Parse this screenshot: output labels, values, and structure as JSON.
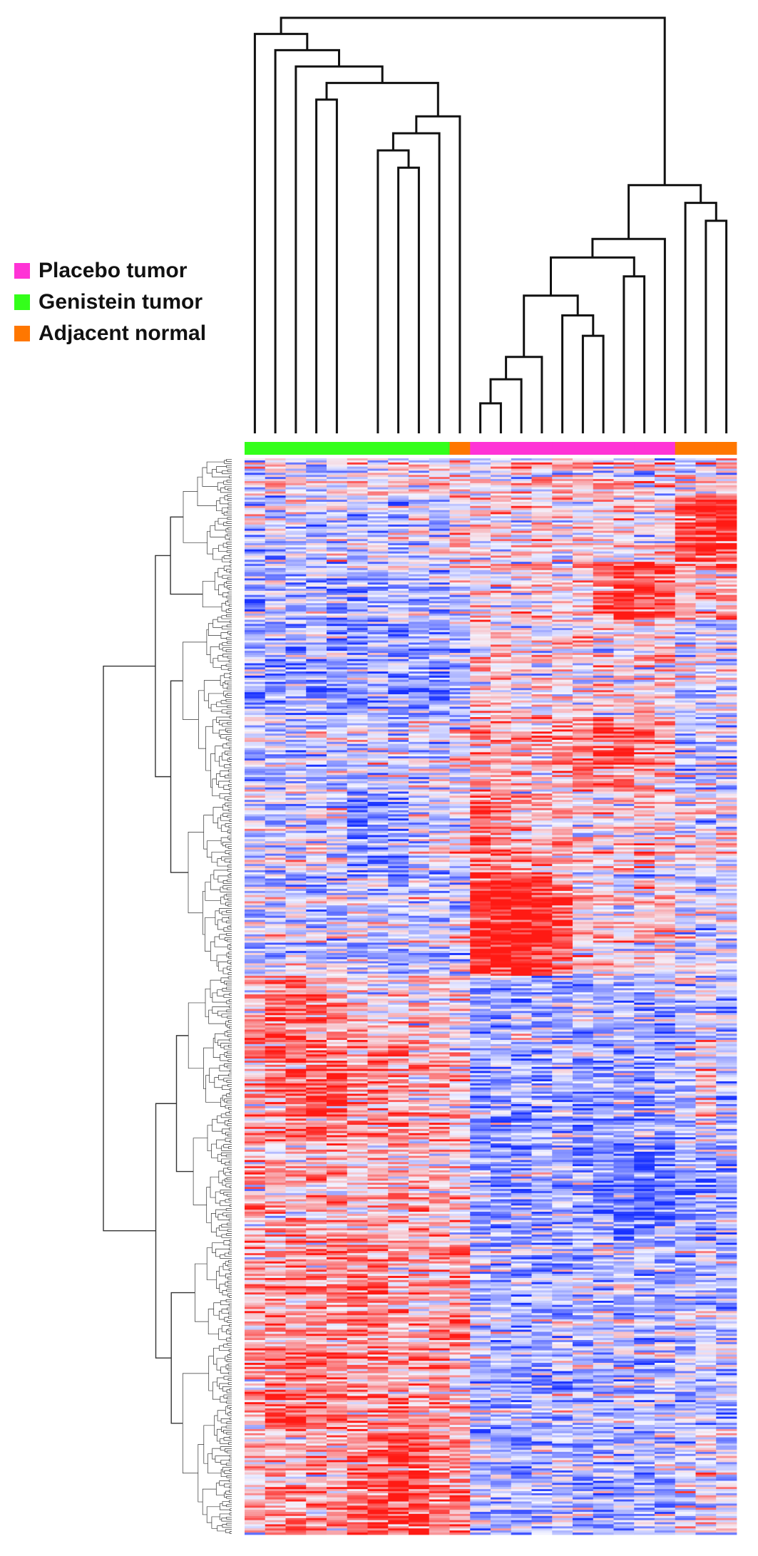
{
  "chart_data": {
    "type": "heatmap",
    "title": "",
    "legend_placement": "left",
    "legend": [
      {
        "label": "Placebo tumor",
        "color": "#ff33d6"
      },
      {
        "label": "Genistein tumor",
        "color": "#33ff1a"
      },
      {
        "label": "Adjacent normal",
        "color": "#ff7700"
      }
    ],
    "colors": {
      "low": "#1a33ff",
      "mid": "#f4f4ff",
      "high": "#ff1a14",
      "dendrogram": "#111111",
      "row_dendrogram": "#333333"
    },
    "n_rows": 520,
    "columns": [
      {
        "id": 1,
        "group": "Genistein tumor"
      },
      {
        "id": 2,
        "group": "Genistein tumor"
      },
      {
        "id": 3,
        "group": "Genistein tumor"
      },
      {
        "id": 4,
        "group": "Genistein tumor"
      },
      {
        "id": 5,
        "group": "Genistein tumor"
      },
      {
        "id": 6,
        "group": "Genistein tumor"
      },
      {
        "id": 7,
        "group": "Genistein tumor"
      },
      {
        "id": 8,
        "group": "Genistein tumor"
      },
      {
        "id": 9,
        "group": "Genistein tumor"
      },
      {
        "id": 10,
        "group": "Genistein tumor"
      },
      {
        "id": 11,
        "group": "Adjacent normal"
      },
      {
        "id": 12,
        "group": "Placebo tumor"
      },
      {
        "id": 13,
        "group": "Placebo tumor"
      },
      {
        "id": 14,
        "group": "Placebo tumor"
      },
      {
        "id": 15,
        "group": "Placebo tumor"
      },
      {
        "id": 16,
        "group": "Placebo tumor"
      },
      {
        "id": 17,
        "group": "Placebo tumor"
      },
      {
        "id": 18,
        "group": "Placebo tumor"
      },
      {
        "id": 19,
        "group": "Placebo tumor"
      },
      {
        "id": 20,
        "group": "Placebo tumor"
      },
      {
        "id": 21,
        "group": "Placebo tumor"
      },
      {
        "id": 22,
        "group": "Adjacent normal"
      },
      {
        "id": 23,
        "group": "Adjacent normal"
      },
      {
        "id": 24,
        "group": "Adjacent normal"
      }
    ],
    "column_dendrogram_merges": [
      [
        12,
        13
      ],
      [
        14,
        101
      ],
      [
        15,
        102
      ],
      [
        17,
        18
      ],
      [
        16,
        104
      ],
      [
        103,
        105
      ],
      [
        19,
        20
      ],
      [
        106,
        107
      ],
      [
        108,
        21
      ],
      [
        23,
        24
      ],
      [
        22,
        110
      ],
      [
        109,
        111
      ],
      [
        8,
        9
      ],
      [
        7,
        113
      ],
      [
        114,
        10
      ],
      [
        115,
        11
      ],
      [
        4,
        5
      ],
      [
        117,
        116
      ],
      [
        3,
        118
      ],
      [
        2,
        119
      ],
      [
        1,
        120
      ],
      [
        121,
        112
      ]
    ],
    "row_blocks": [
      {
        "rows": [
          0,
          18
        ],
        "bias": [
          0,
          0,
          0,
          0,
          0,
          0,
          0,
          0,
          0,
          0,
          0,
          0,
          0,
          0,
          0,
          0,
          0,
          0,
          0,
          0,
          0,
          0,
          0,
          0
        ]
      },
      {
        "rows": [
          18,
          50
        ],
        "bias": [
          -0.25,
          -0.25,
          -0.25,
          -0.25,
          -0.25,
          -0.25,
          -0.25,
          -0.25,
          -0.25,
          -0.25,
          0.3,
          0.2,
          0.2,
          0.2,
          0.2,
          0.2,
          0.2,
          0.2,
          0.2,
          0.2,
          0.2,
          1.3,
          1.5,
          1.4
        ]
      },
      {
        "rows": [
          50,
          78
        ],
        "bias": [
          -0.5,
          -0.5,
          -0.5,
          -0.5,
          -0.5,
          -0.5,
          -0.5,
          -0.5,
          -0.5,
          -0.5,
          -0.2,
          0.2,
          0.2,
          0.2,
          0.2,
          0.2,
          0.2,
          1.2,
          1.3,
          1.3,
          1.0,
          0.5,
          0.6,
          0.6
        ]
      },
      {
        "rows": [
          78,
          125
        ],
        "bias": [
          -0.6,
          -0.6,
          -0.6,
          -0.6,
          -0.6,
          -0.6,
          -0.6,
          -0.6,
          -0.6,
          -0.6,
          -0.3,
          0.3,
          0.3,
          0.3,
          0.3,
          0.3,
          0.3,
          0.3,
          0.3,
          0.3,
          0.3,
          -0.1,
          -0.1,
          -0.1
        ]
      },
      {
        "rows": [
          125,
          160
        ],
        "bias": [
          -0.3,
          -0.3,
          -0.3,
          -0.3,
          -0.3,
          -0.3,
          -0.3,
          -0.3,
          -0.3,
          -0.3,
          0,
          0.5,
          0.5,
          0.5,
          0.5,
          0.5,
          1.0,
          1.0,
          1.0,
          0.6,
          0.6,
          -0.3,
          -0.3,
          -0.3
        ]
      },
      {
        "rows": [
          160,
          200
        ],
        "bias": [
          -0.2,
          -0.2,
          -0.2,
          -0.2,
          -0.2,
          -0.8,
          -0.8,
          -0.8,
          -0.2,
          -0.2,
          -0.2,
          1.0,
          0.8,
          0.4,
          0.4,
          0.4,
          0.3,
          0.3,
          0.3,
          0.3,
          0.3,
          0,
          0,
          0
        ]
      },
      {
        "rows": [
          200,
          250
        ],
        "bias": [
          -0.3,
          -0.3,
          -0.3,
          -0.3,
          -0.3,
          -0.3,
          -0.3,
          -0.3,
          -0.3,
          -0.3,
          -0.3,
          1.6,
          1.7,
          1.7,
          1.5,
          1.2,
          0.2,
          0.2,
          0.2,
          0.2,
          0.2,
          -0.2,
          -0.2,
          -0.2
        ]
      },
      {
        "rows": [
          250,
          282
        ],
        "bias": [
          0.6,
          1.0,
          1.2,
          0.9,
          0.6,
          0.3,
          0.3,
          0.3,
          0.3,
          0.3,
          0.2,
          -0.5,
          -0.5,
          -0.5,
          -0.5,
          -0.5,
          -0.5,
          -0.5,
          -0.5,
          -0.5,
          -0.5,
          -0.3,
          -0.2,
          -0.3
        ]
      },
      {
        "rows": [
          282,
          330
        ],
        "bias": [
          0.7,
          0.9,
          1.1,
          1.2,
          1.1,
          0.7,
          0.7,
          0.7,
          0.5,
          0.5,
          0.3,
          -0.6,
          -0.6,
          -0.6,
          -0.6,
          -0.6,
          -0.6,
          -0.6,
          -0.6,
          -0.6,
          -0.6,
          -0.2,
          0.2,
          -0.2
        ]
      },
      {
        "rows": [
          330,
          380
        ],
        "bias": [
          0.6,
          0.5,
          0.5,
          0.5,
          0.5,
          0.5,
          0.5,
          0.4,
          0.4,
          0.4,
          0.2,
          -0.6,
          -0.6,
          -0.6,
          -0.6,
          -0.6,
          -0.6,
          -0.9,
          -0.9,
          -0.9,
          -0.9,
          -0.6,
          -0.6,
          -0.6
        ]
      },
      {
        "rows": [
          380,
          430
        ],
        "bias": [
          0.7,
          0.7,
          0.7,
          0.7,
          0.7,
          0.9,
          0.9,
          0.6,
          0.6,
          0.6,
          0.8,
          -0.4,
          -0.4,
          -0.4,
          -0.4,
          -0.4,
          -0.4,
          -0.4,
          -0.4,
          -0.4,
          -0.4,
          -0.3,
          -0.3,
          -0.3
        ]
      },
      {
        "rows": [
          430,
          470
        ],
        "bias": [
          0.6,
          1.0,
          1.0,
          0.7,
          0.7,
          0.6,
          0.6,
          0.6,
          0.6,
          0.6,
          0.4,
          -0.5,
          -0.5,
          -0.5,
          -0.5,
          -0.5,
          -0.5,
          -0.5,
          -0.5,
          -0.5,
          -0.5,
          -0.3,
          -0.3,
          -0.3
        ]
      },
      {
        "rows": [
          470,
          520
        ],
        "bias": [
          0.5,
          0.5,
          0.5,
          0.5,
          0.5,
          0.9,
          1.1,
          1.3,
          1.2,
          0.8,
          0.8,
          -0.5,
          -0.5,
          -0.5,
          -0.5,
          -0.5,
          -0.5,
          -0.5,
          -0.5,
          -0.5,
          -0.5,
          -0.2,
          0.1,
          -0.2
        ]
      }
    ]
  }
}
